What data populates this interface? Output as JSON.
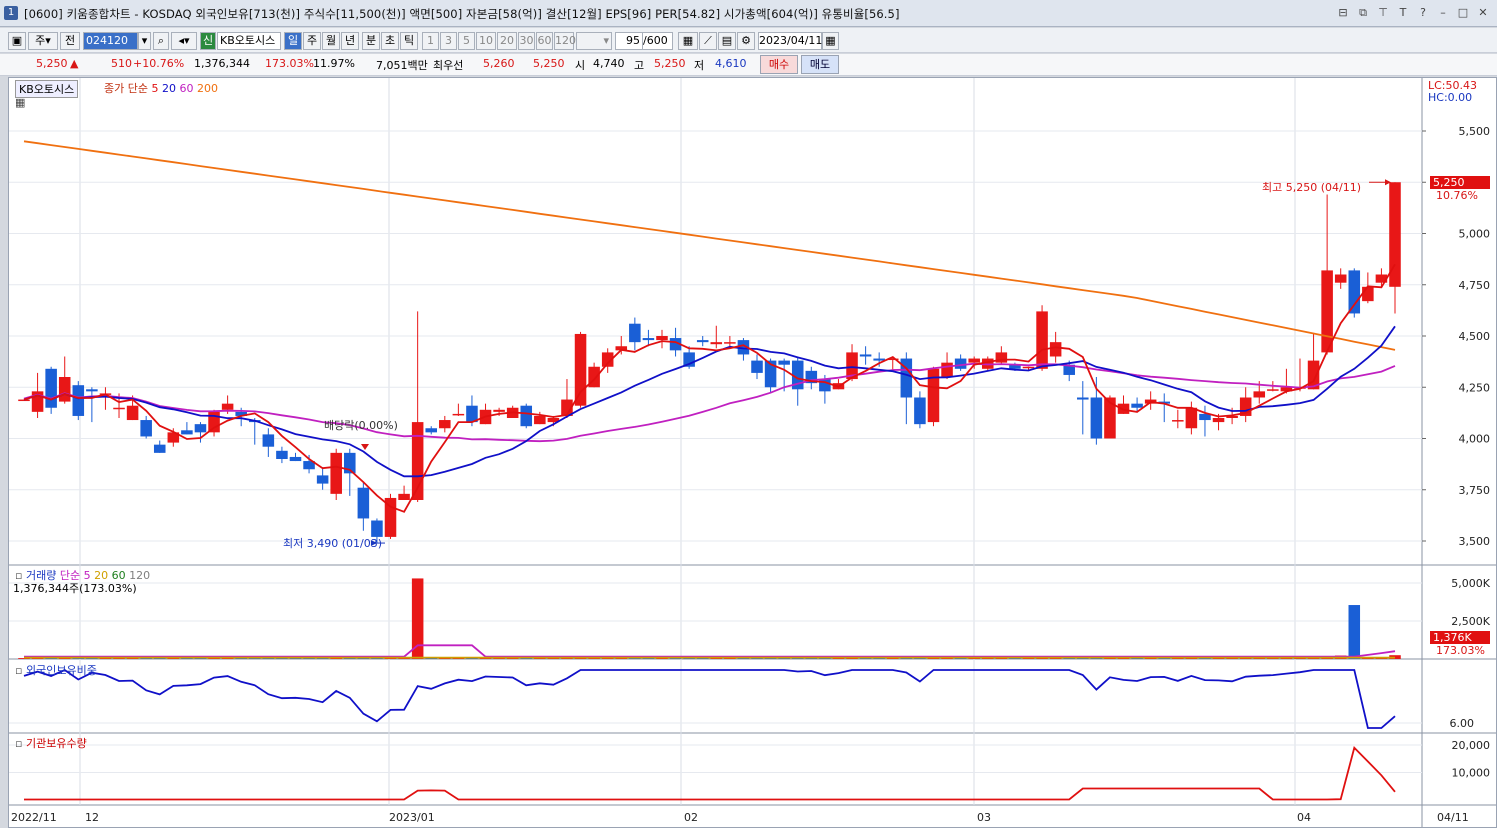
{
  "window": {
    "number": "1",
    "title": "[0600] 키움종합차트 - KOSDAQ 외국인보유[713(천)] 주식수[11,500(천)] 액면[500] 자본금[58(억)] 결산[12월] EPS[96] PER[54.82] 시가총액[604(억)] 유통비율[56.5]",
    "controls": [
      "⊟",
      "⧉",
      "⊤",
      "T",
      "?",
      "–",
      "□",
      "✕"
    ]
  },
  "toolbar": {
    "period_sel": "주",
    "prev": "전",
    "code": "024120",
    "badge": "신",
    "stock_name": "KB오토시스",
    "periods": [
      "일",
      "주",
      "월",
      "년",
      "분",
      "초",
      "틱"
    ],
    "intervals": [
      "1",
      "3",
      "5",
      "10",
      "20",
      "30",
      "60",
      "120"
    ],
    "count": "95",
    "count_total": "/600",
    "date": "2023/04/11"
  },
  "quote": {
    "price": "5,250",
    "arrow": "▲",
    "change": "510",
    "change_pct": "+10.76%",
    "volume": "1,376,344",
    "vol_ratio": "173.03%",
    "turnover": "11.97%",
    "amount": "7,051백만",
    "bid_label": "최우선",
    "ask": "5,260",
    "bid": "5,250",
    "open_label": "시",
    "open": "4,740",
    "high_label": "고",
    "high": "5,250",
    "low_label": "저",
    "low": "4,610",
    "buy_btn": "매수",
    "sell_btn": "매도"
  },
  "price_panel": {
    "name_tag": "KB오토시스",
    "legend_main": "종가 단순",
    "ma_periods": [
      "5",
      "20",
      "60",
      "200"
    ],
    "ma_colors": [
      "#e01010",
      "#1010c8",
      "#c020c0",
      "#f07010"
    ],
    "lc": "LC:50.43",
    "hc": "HC:0.00",
    "yticks": [
      "5,500",
      "5,250",
      "5,000",
      "4,750",
      "4,500",
      "4,250",
      "4,000",
      "3,750",
      "3,500"
    ],
    "cur_price": "5,250",
    "cur_pct": "10.76%",
    "high_note": "최고 5,250 (04/11)",
    "low_note": "최저 3,490 (01/03)",
    "event_note": "배당락(0.00%)"
  },
  "volume_panel": {
    "title": "거래량",
    "legend_main": "단순",
    "ma_periods": [
      "5",
      "20",
      "60",
      "120"
    ],
    "ma_colors": [
      "#c020c0",
      "#d0a000",
      "#208020",
      "#808080"
    ],
    "value": "1,376,344주(173.03%)",
    "yticks": [
      "5,000K",
      "2,500K"
    ],
    "cur": "1,376K",
    "cur_pct": "173.03%"
  },
  "foreign_panel": {
    "title": "외국인보유비중",
    "ytick": "6.00"
  },
  "inst_panel": {
    "title": "기관보유수량",
    "yticks": [
      "20,000",
      "10,000"
    ]
  },
  "xaxis": {
    "labels": [
      "2022/11",
      "12",
      "2023/01",
      "02",
      "03",
      "04",
      "04/11"
    ]
  },
  "chart_data": {
    "type": "candlestick",
    "candles": [
      [
        4190,
        4190,
        4190,
        4190
      ],
      [
        4130,
        4230,
        4320,
        4100
      ],
      [
        4340,
        4150,
        4350,
        4120
      ],
      [
        4180,
        4300,
        4400,
        4170
      ],
      [
        4260,
        4110,
        4280,
        4090
      ],
      [
        4240,
        4230,
        4250,
        4080
      ],
      [
        4220,
        4220,
        4250,
        4140
      ],
      [
        4150,
        4150,
        4220,
        4100
      ],
      [
        4090,
        4160,
        4210,
        4090
      ],
      [
        4090,
        4010,
        4110,
        4000
      ],
      [
        3970,
        3930,
        3990,
        3930
      ],
      [
        3980,
        4030,
        4050,
        3960
      ],
      [
        4040,
        4020,
        4080,
        4020
      ],
      [
        4070,
        4030,
        4080,
        3980
      ],
      [
        4030,
        4130,
        4140,
        4010
      ],
      [
        4140,
        4170,
        4210,
        4120
      ],
      [
        4130,
        4110,
        4150,
        4060
      ],
      [
        4090,
        4080,
        4100,
        3970
      ],
      [
        4020,
        3960,
        4050,
        3910
      ],
      [
        3940,
        3900,
        3960,
        3880
      ],
      [
        3910,
        3890,
        3930,
        3890
      ],
      [
        3890,
        3850,
        3920,
        3830
      ],
      [
        3820,
        3780,
        3860,
        3750
      ],
      [
        3730,
        3930,
        3950,
        3700
      ],
      [
        3930,
        3830,
        3950,
        3720
      ],
      [
        3760,
        3610,
        3790,
        3550
      ],
      [
        3600,
        3520,
        3610,
        3490
      ],
      [
        3520,
        3710,
        3730,
        3510
      ],
      [
        3700,
        3730,
        3770,
        3700
      ],
      [
        3700,
        4080,
        4620,
        3690
      ],
      [
        4050,
        4030,
        4060,
        4020
      ],
      [
        4050,
        4090,
        4110,
        4030
      ],
      [
        4120,
        4120,
        4170,
        4110
      ],
      [
        4160,
        4080,
        4210,
        4060
      ],
      [
        4070,
        4140,
        4170,
        4070
      ],
      [
        4130,
        4140,
        4150,
        4110
      ],
      [
        4100,
        4150,
        4160,
        4100
      ],
      [
        4160,
        4060,
        4170,
        4050
      ],
      [
        4070,
        4110,
        4130,
        4070
      ],
      [
        4080,
        4100,
        4110,
        4060
      ],
      [
        4110,
        4190,
        4290,
        4100
      ],
      [
        4160,
        4510,
        4520,
        4150
      ],
      [
        4250,
        4350,
        4370,
        4250
      ],
      [
        4350,
        4420,
        4440,
        4320
      ],
      [
        4430,
        4450,
        4500,
        4410
      ],
      [
        4560,
        4470,
        4590,
        4430
      ],
      [
        4490,
        4480,
        4530,
        4450
      ],
      [
        4480,
        4500,
        4530,
        4440
      ],
      [
        4490,
        4430,
        4540,
        4400
      ],
      [
        4420,
        4350,
        4450,
        4340
      ],
      [
        4480,
        4470,
        4500,
        4450
      ],
      [
        4460,
        4470,
        4550,
        4440
      ],
      [
        4470,
        4470,
        4500,
        4450
      ],
      [
        4480,
        4410,
        4490,
        4380
      ],
      [
        4380,
        4320,
        4410,
        4290
      ],
      [
        4380,
        4250,
        4390,
        4220
      ],
      [
        4380,
        4360,
        4390,
        4230
      ],
      [
        4380,
        4240,
        4400,
        4160
      ],
      [
        4330,
        4270,
        4350,
        4240
      ],
      [
        4290,
        4230,
        4310,
        4170
      ],
      [
        4240,
        4270,
        4290,
        4240
      ],
      [
        4290,
        4420,
        4460,
        4280
      ],
      [
        4410,
        4400,
        4450,
        4360
      ],
      [
        4390,
        4380,
        4420,
        4350
      ],
      [
        4390,
        4390,
        4400,
        4330
      ],
      [
        4390,
        4200,
        4420,
        4070
      ],
      [
        4200,
        4070,
        4230,
        4050
      ],
      [
        4080,
        4340,
        4350,
        4060
      ],
      [
        4300,
        4370,
        4420,
        4290
      ],
      [
        4390,
        4340,
        4410,
        4330
      ],
      [
        4370,
        4390,
        4400,
        4340
      ],
      [
        4340,
        4390,
        4400,
        4330
      ],
      [
        4370,
        4420,
        4450,
        4360
      ],
      [
        4360,
        4340,
        4370,
        4330
      ],
      [
        4350,
        4350,
        4350,
        4330
      ],
      [
        4340,
        4620,
        4650,
        4330
      ],
      [
        4400,
        4470,
        4520,
        4370
      ],
      [
        4360,
        4310,
        4380,
        4280
      ],
      [
        4200,
        4190,
        4280,
        4020
      ],
      [
        4200,
        4000,
        4300,
        3970
      ],
      [
        4000,
        4200,
        4210,
        4000
      ],
      [
        4120,
        4170,
        4210,
        4120
      ],
      [
        4170,
        4150,
        4200,
        4130
      ],
      [
        4170,
        4190,
        4230,
        4140
      ],
      [
        4180,
        4170,
        4220,
        4080
      ],
      [
        4090,
        4090,
        4140,
        4050
      ],
      [
        4050,
        4150,
        4180,
        4020
      ],
      [
        4120,
        4090,
        4160,
        4010
      ],
      [
        4080,
        4100,
        4120,
        4040
      ],
      [
        4100,
        4110,
        4150,
        4070
      ],
      [
        4110,
        4200,
        4250,
        4080
      ],
      [
        4200,
        4230,
        4280,
        4170
      ],
      [
        4240,
        4240,
        4280,
        4230
      ],
      [
        4230,
        4250,
        4340,
        4220
      ],
      [
        4250,
        4250,
        4390,
        4230
      ],
      [
        4240,
        4380,
        4510,
        4240
      ],
      [
        4420,
        4820,
        5190,
        4410
      ],
      [
        4760,
        4800,
        4830,
        4730
      ],
      [
        4820,
        4610,
        4830,
        4590
      ],
      [
        4670,
        4740,
        4810,
        4660
      ],
      [
        4760,
        4800,
        4830,
        4740
      ],
      [
        4740,
        5250,
        5250,
        4610
      ]
    ],
    "ma5_color": "#e01010",
    "ma20_color": "#1010c8",
    "ma60_color": "#c020c0",
    "ma200_color": "#f07010"
  }
}
